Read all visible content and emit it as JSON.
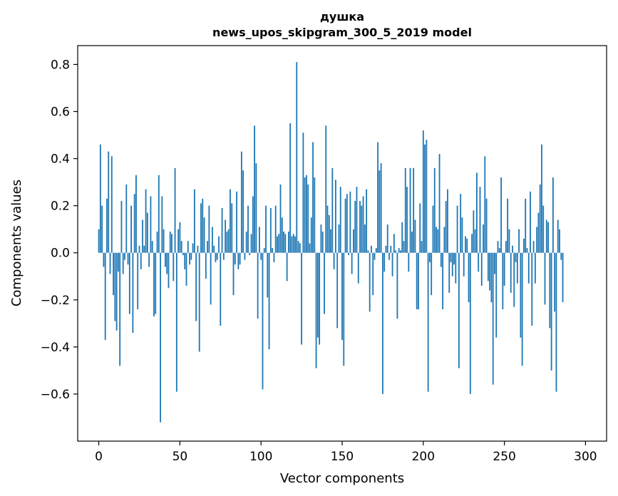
{
  "chart_data": {
    "type": "bar",
    "title": "душка",
    "subtitle": "news_upos_skipgram_300_5_2019 model",
    "xlabel": "Vector components",
    "ylabel": "Components values",
    "xlim": [
      -13,
      313
    ],
    "ylim": [
      -0.8,
      0.88
    ],
    "xticks": [
      0,
      50,
      100,
      150,
      200,
      250,
      300
    ],
    "xtick_labels": [
      "0",
      "50",
      "100",
      "150",
      "200",
      "250",
      "300"
    ],
    "yticks": [
      -0.6,
      -0.4,
      -0.2,
      0.0,
      0.2,
      0.4,
      0.6,
      0.8
    ],
    "ytick_labels": [
      "−0.6",
      "−0.4",
      "−0.2",
      "0.0",
      "0.2",
      "0.4",
      "0.6",
      "0.8"
    ],
    "bar_color": "#1f77b4",
    "grid": false,
    "values": [
      0.1,
      0.46,
      0.2,
      -0.06,
      -0.37,
      0.23,
      0.43,
      -0.09,
      0.41,
      -0.18,
      -0.29,
      -0.33,
      -0.08,
      -0.48,
      0.22,
      -0.09,
      -0.03,
      0.29,
      -0.05,
      -0.26,
      0.2,
      -0.34,
      0.25,
      0.33,
      -0.24,
      0.03,
      -0.07,
      0.14,
      0.03,
      0.27,
      0.17,
      -0.06,
      0.24,
      0.05,
      -0.27,
      -0.26,
      0.09,
      0.33,
      -0.72,
      0.24,
      0.1,
      -0.06,
      -0.09,
      -0.15,
      0.09,
      0.08,
      -0.12,
      0.36,
      -0.59,
      0.1,
      0.13,
      0.05,
      -0.01,
      -0.07,
      -0.14,
      0.05,
      -0.05,
      -0.03,
      0.04,
      0.27,
      -0.29,
      0.03,
      -0.42,
      0.21,
      0.23,
      0.15,
      -0.11,
      0.05,
      0.2,
      -0.22,
      0.11,
      0.03,
      -0.04,
      -0.03,
      0.07,
      -0.31,
      0.19,
      -0.03,
      0.14,
      0.09,
      0.1,
      0.27,
      0.21,
      -0.18,
      -0.05,
      0.26,
      -0.07,
      -0.05,
      0.43,
      0.35,
      -0.03,
      0.09,
      0.2,
      -0.01,
      0.08,
      0.24,
      0.54,
      0.38,
      -0.28,
      0.11,
      -0.03,
      -0.58,
      0.02,
      0.2,
      -0.19,
      -0.41,
      0.19,
      0.02,
      -0.04,
      0.2,
      0.07,
      0.08,
      0.29,
      0.15,
      0.09,
      0.08,
      -0.12,
      0.09,
      0.55,
      0.07,
      0.08,
      0.07,
      0.81,
      0.05,
      0.04,
      -0.39,
      0.51,
      0.32,
      0.33,
      0.29,
      0.04,
      0.15,
      0.47,
      0.32,
      -0.49,
      -0.36,
      -0.39,
      0.12,
      0.09,
      -0.26,
      0.54,
      0.2,
      0.16,
      0.1,
      0.36,
      -0.07,
      0.31,
      -0.32,
      0.12,
      0.28,
      -0.37,
      -0.48,
      0.23,
      0.25,
      -0.01,
      0.26,
      -0.09,
      0.1,
      0.22,
      0.28,
      -0.13,
      0.22,
      0.2,
      0.24,
      0.12,
      0.27,
      0.01,
      -0.25,
      0.03,
      -0.18,
      -0.03,
      0.02,
      0.47,
      0.35,
      0.38,
      -0.6,
      -0.08,
      0.03,
      0.12,
      -0.03,
      0.03,
      -0.1,
      0.08,
      0.01,
      -0.28,
      0.02,
      0.01,
      0.13,
      0.05,
      0.36,
      0.28,
      -0.08,
      0.36,
      0.09,
      0.36,
      0.14,
      -0.24,
      -0.24,
      0.21,
      0.05,
      0.52,
      0.46,
      0.48,
      -0.59,
      -0.04,
      -0.18,
      0.2,
      0.36,
      0.11,
      0.1,
      0.42,
      -0.06,
      -0.24,
      0.11,
      0.22,
      0.27,
      -0.17,
      -0.04,
      -0.1,
      -0.05,
      -0.13,
      0.2,
      -0.49,
      0.25,
      0.15,
      -0.1,
      0.07,
      0.06,
      -0.21,
      -0.6,
      0.08,
      0.18,
      0.1,
      0.34,
      -0.08,
      0.28,
      -0.14,
      0.12,
      0.41,
      0.23,
      -0.12,
      -0.16,
      -0.21,
      -0.56,
      -0.09,
      -0.36,
      0.05,
      0.02,
      0.32,
      -0.24,
      -0.14,
      0.05,
      0.23,
      0.1,
      -0.17,
      0.03,
      -0.23,
      -0.04,
      -0.13,
      0.1,
      -0.36,
      -0.48,
      0.06,
      0.23,
      0.02,
      -0.13,
      0.26,
      -0.31,
      0.05,
      -0.13,
      0.11,
      0.17,
      0.29,
      0.46,
      0.2,
      -0.22,
      0.14,
      0.13,
      -0.32,
      -0.5,
      0.32,
      -0.25,
      -0.59,
      0.14,
      0.1,
      -0.03,
      -0.21
    ]
  }
}
